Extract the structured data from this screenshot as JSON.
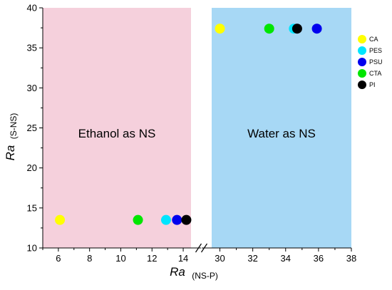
{
  "chart_data": {
    "type": "scatter",
    "title": "",
    "xlabel": {
      "main": "Ra",
      "sub": "(NS-P)"
    },
    "ylabel": {
      "main": "Ra",
      "sub": "(S-NS)"
    },
    "xlim_left": [
      5,
      14.5
    ],
    "xlim_right": [
      29.5,
      38
    ],
    "x_ticks_left": [
      6,
      8,
      10,
      12,
      14
    ],
    "x_ticks_right": [
      30,
      32,
      34,
      36,
      38
    ],
    "ylim": [
      10,
      40
    ],
    "y_ticks": [
      10,
      15,
      20,
      25,
      30,
      35,
      40
    ],
    "axis_break": "//",
    "grid": false,
    "legend_position": "right",
    "regions": [
      {
        "label": "Ethanol as NS",
        "panel": "left",
        "color": "#f5d0dc"
      },
      {
        "label": "Water as NS",
        "panel": "right",
        "color": "#a7d8f5"
      }
    ],
    "series": [
      {
        "name": "CA",
        "color": "#ffff00",
        "points": [
          {
            "x": 6.1,
            "y": 13.5
          },
          {
            "x": 30.0,
            "y": 37.4
          }
        ]
      },
      {
        "name": "PES",
        "color": "#00e5ff",
        "points": [
          {
            "x": 12.9,
            "y": 13.5
          },
          {
            "x": 34.5,
            "y": 37.4
          }
        ]
      },
      {
        "name": "PSU",
        "color": "#0000ee",
        "points": [
          {
            "x": 13.6,
            "y": 13.5
          },
          {
            "x": 35.9,
            "y": 37.4
          }
        ]
      },
      {
        "name": "CTA",
        "color": "#00e600",
        "points": [
          {
            "x": 11.1,
            "y": 13.5
          },
          {
            "x": 33.0,
            "y": 37.4
          }
        ]
      },
      {
        "name": "PI",
        "color": "#000000",
        "points": [
          {
            "x": 14.2,
            "y": 13.5
          },
          {
            "x": 34.7,
            "y": 37.4
          }
        ]
      }
    ]
  }
}
